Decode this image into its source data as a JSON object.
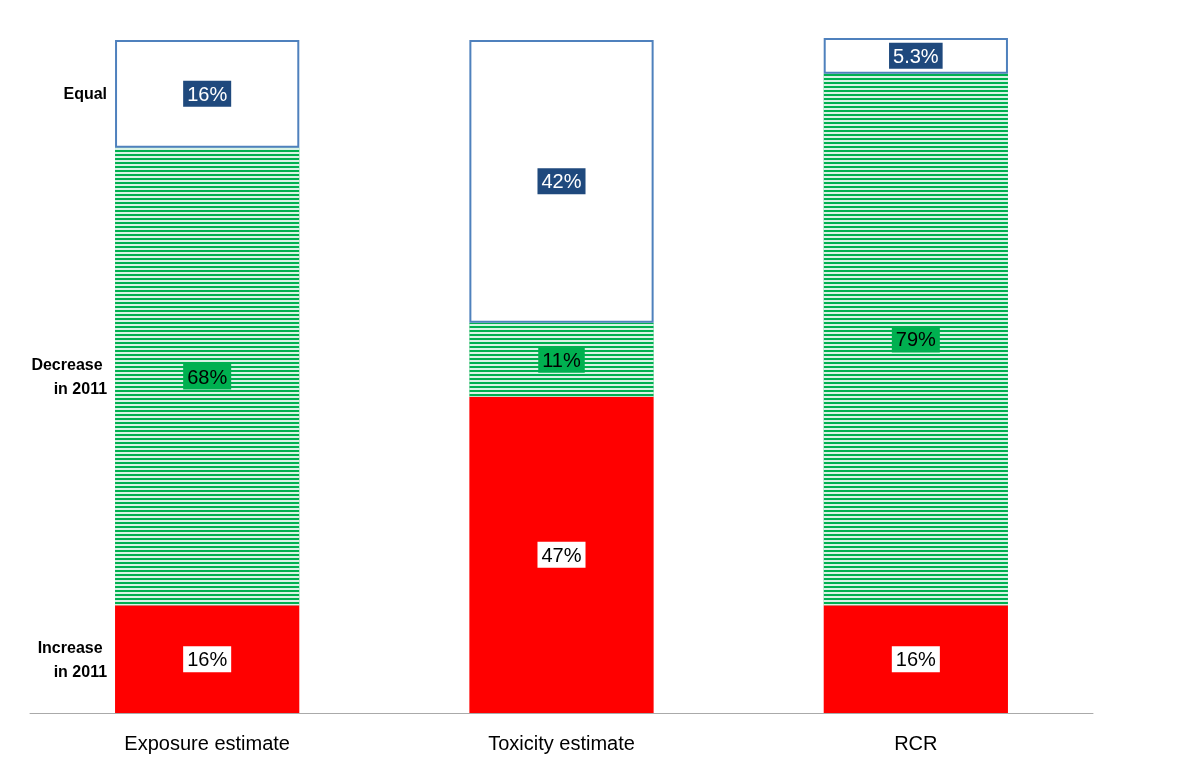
{
  "chart_data": {
    "type": "bar",
    "stacked": true,
    "categories": [
      "Exposure estimate",
      "Toxicity estimate",
      "RCR"
    ],
    "series": [
      {
        "name": "Increase in 2011",
        "color": "#ff0000",
        "values": [
          16,
          47,
          16
        ],
        "value_labels": [
          "16%",
          "47%",
          "16%"
        ]
      },
      {
        "name": "Decrease in 2011",
        "color": "#00b050",
        "values": [
          68,
          11,
          79
        ],
        "value_labels": [
          "68%",
          "11%",
          "79%"
        ]
      },
      {
        "name": "Equal",
        "color": "#ffffff",
        "values": [
          16,
          42,
          5.3
        ],
        "value_labels": [
          "16%",
          "42%",
          "5.3%"
        ]
      }
    ],
    "legend": false,
    "tick_labels": "x"
  }
}
